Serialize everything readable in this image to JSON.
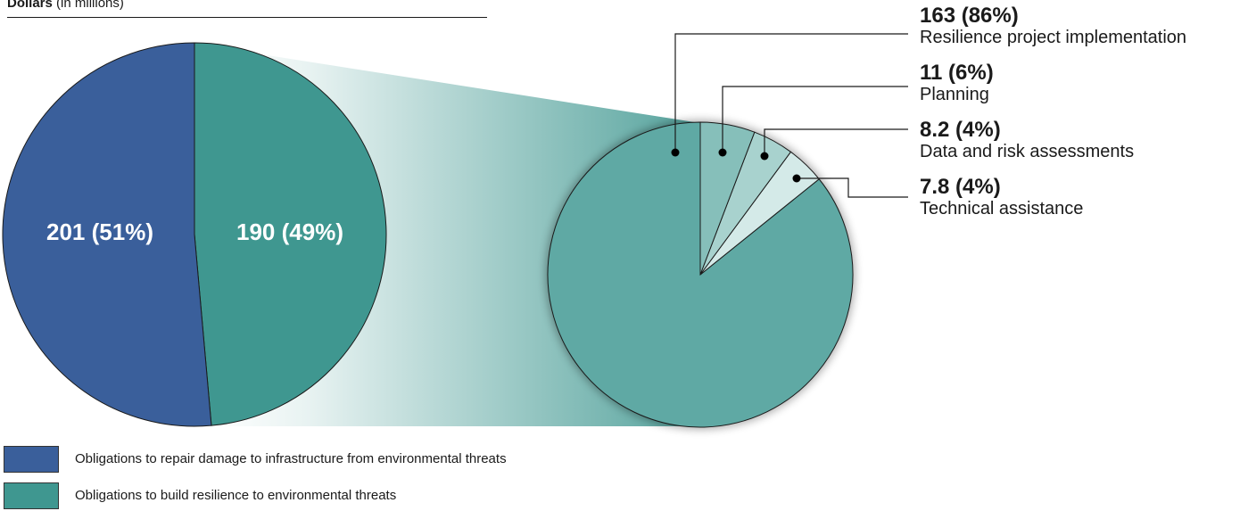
{
  "axis_title": {
    "bold": "Dollars",
    "rest": " (in millions)"
  },
  "colors": {
    "repair": "#3a5f9b",
    "resilience": "#3f9790",
    "breakdown": [
      "#5fa9a4",
      "#86bfba",
      "#a8d2ce",
      "#d4eae8"
    ]
  },
  "chart_data": [
    {
      "type": "pie",
      "slices": [
        {
          "key": "repair",
          "value": 201,
          "percent": 51,
          "label": "201 (51%)"
        },
        {
          "key": "resilience",
          "value": 190,
          "percent": 49,
          "label": "190 (49%)"
        }
      ]
    },
    {
      "type": "pie",
      "slices": [
        {
          "name": "Resilience project implementation",
          "value": 163,
          "percent": 86,
          "label": "163 (86%)"
        },
        {
          "name": "Planning",
          "value": 11,
          "percent": 6,
          "label": "11 (6%)"
        },
        {
          "name": "Data and risk assessments",
          "value": 8.2,
          "percent": 4,
          "label": "8.2 (4%)"
        },
        {
          "name": "Technical assistance",
          "value": 7.8,
          "percent": 4,
          "label": "7.8 (4%)"
        }
      ]
    }
  ],
  "legend": [
    {
      "key": "repair",
      "label": "Obligations to repair damage to infrastructure from environmental threats"
    },
    {
      "key": "resilience",
      "label": "Obligations to build resilience to environmental threats"
    }
  ]
}
